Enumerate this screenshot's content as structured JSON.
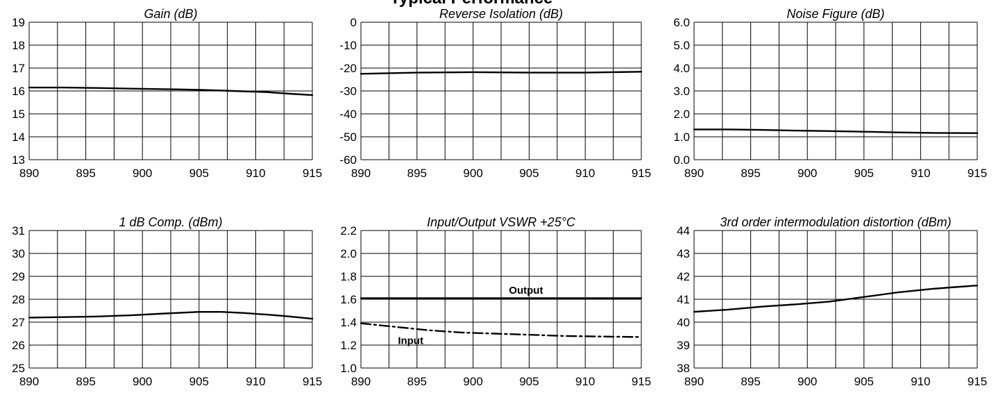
{
  "page_heading": "Typical Performance",
  "chart_data": [
    {
      "type": "line",
      "title": "Gain (dB)",
      "xlim": [
        890,
        915
      ],
      "ylim": [
        13,
        19
      ],
      "x_ticks": [
        "890",
        "895",
        "900",
        "905",
        "910",
        "915"
      ],
      "y_ticks": [
        "13",
        "14",
        "15",
        "16",
        "17",
        "18",
        "19"
      ],
      "grid": true,
      "series": [
        {
          "style": "solid",
          "x": [
            890,
            893,
            896,
            899,
            902,
            905,
            908,
            911,
            913,
            915
          ],
          "y": [
            16.15,
            16.15,
            16.13,
            16.1,
            16.08,
            16.05,
            16.0,
            15.95,
            15.88,
            15.82
          ]
        }
      ],
      "annotations": []
    },
    {
      "type": "line",
      "title": "Reverse Isolation (dB)",
      "xlim": [
        890,
        915
      ],
      "ylim": [
        -60,
        0
      ],
      "x_ticks": [
        "890",
        "895",
        "900",
        "905",
        "910",
        "915"
      ],
      "y_ticks": [
        "-60",
        "-50",
        "-40",
        "-30",
        "-20",
        "-10",
        "0"
      ],
      "grid": true,
      "series": [
        {
          "style": "solid",
          "x": [
            890,
            895,
            900,
            905,
            910,
            915
          ],
          "y": [
            -22.5,
            -22.0,
            -21.8,
            -22.0,
            -22.0,
            -21.6
          ]
        }
      ],
      "annotations": []
    },
    {
      "type": "line",
      "title": "Noise Figure (dB)",
      "xlim": [
        890,
        915
      ],
      "ylim": [
        0.0,
        6.0
      ],
      "x_ticks": [
        "890",
        "895",
        "900",
        "905",
        "910",
        "915"
      ],
      "y_ticks": [
        "0.0",
        "1.0",
        "2.0",
        "3.0",
        "4.0",
        "5.0",
        "6.0"
      ],
      "grid": true,
      "series": [
        {
          "style": "solid",
          "x": [
            890,
            893,
            896,
            899,
            902,
            905,
            908,
            911,
            915
          ],
          "y": [
            1.32,
            1.32,
            1.3,
            1.27,
            1.25,
            1.22,
            1.19,
            1.17,
            1.16
          ]
        }
      ],
      "annotations": []
    },
    {
      "type": "line",
      "title": "1 dB Comp. (dBm)",
      "xlim": [
        890,
        915
      ],
      "ylim": [
        25,
        31
      ],
      "x_ticks": [
        "890",
        "895",
        "900",
        "905",
        "910",
        "915"
      ],
      "y_ticks": [
        "25",
        "26",
        "27",
        "28",
        "29",
        "30",
        "31"
      ],
      "grid": true,
      "series": [
        {
          "style": "solid",
          "x": [
            890,
            893,
            896,
            899,
            902,
            905,
            907,
            909,
            911,
            913,
            915
          ],
          "y": [
            27.2,
            27.22,
            27.25,
            27.3,
            27.38,
            27.45,
            27.45,
            27.4,
            27.33,
            27.25,
            27.15
          ]
        }
      ],
      "annotations": []
    },
    {
      "type": "line",
      "title": "Input/Output VSWR +25°C",
      "xlim": [
        890,
        915
      ],
      "ylim": [
        1.0,
        2.2
      ],
      "x_ticks": [
        "890",
        "895",
        "900",
        "905",
        "910",
        "915"
      ],
      "y_ticks": [
        "1.0",
        "1.2",
        "1.4",
        "1.6",
        "1.8",
        "2.0",
        "2.2"
      ],
      "grid": true,
      "series": [
        {
          "name": "Output",
          "style": "solid",
          "x": [
            890,
            895,
            900,
            905,
            910,
            915
          ],
          "y": [
            1.61,
            1.61,
            1.61,
            1.61,
            1.61,
            1.61
          ]
        },
        {
          "name": "Input",
          "style": "dashdot",
          "x": [
            890,
            893,
            896,
            899,
            902,
            905,
            908,
            911,
            915
          ],
          "y": [
            1.39,
            1.36,
            1.33,
            1.31,
            1.3,
            1.29,
            1.28,
            1.275,
            1.27
          ]
        }
      ],
      "annotations": [
        {
          "text": "Output",
          "x": 903.2,
          "y": 1.65
        },
        {
          "text": "Input",
          "x": 893.3,
          "y": 1.21
        }
      ]
    },
    {
      "type": "line",
      "title": "3rd order intermodulation distortion (dBm)",
      "xlim": [
        890,
        915
      ],
      "ylim": [
        38,
        44
      ],
      "x_ticks": [
        "890",
        "895",
        "900",
        "905",
        "910",
        "915"
      ],
      "y_ticks": [
        "38",
        "39",
        "40",
        "41",
        "42",
        "43",
        "44"
      ],
      "grid": true,
      "series": [
        {
          "style": "solid",
          "x": [
            890,
            893,
            896,
            899,
            902,
            905,
            908,
            911,
            913,
            915
          ],
          "y": [
            40.45,
            40.55,
            40.68,
            40.78,
            40.9,
            41.1,
            41.3,
            41.45,
            41.53,
            41.6
          ]
        }
      ],
      "annotations": []
    }
  ]
}
